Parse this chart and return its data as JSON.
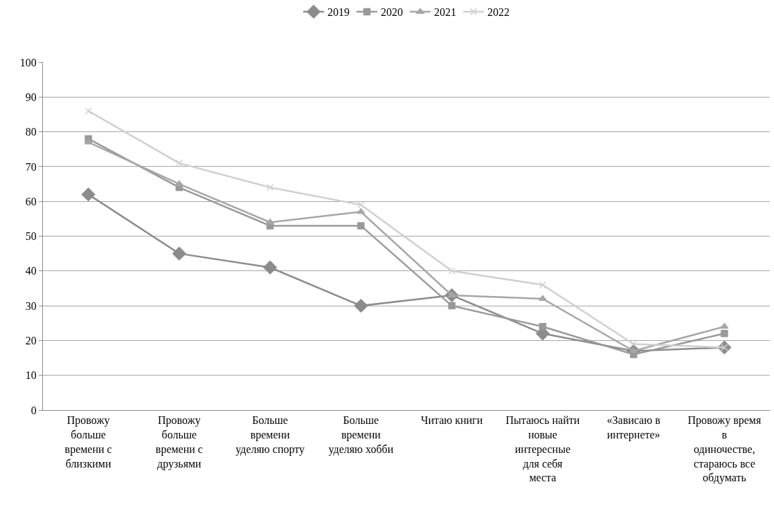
{
  "chart_data": {
    "type": "line",
    "categories": [
      "Провожу больше времени с близкими",
      "Провожу больше времени с друзьями",
      "Больше времени уделяю спорту",
      "Больше времени уделяю хобби",
      "Читаю книги",
      "Пытаюсь найти новые интересные для себя места",
      "«Зависаю в интернете»",
      "Провожу время в одиночестве, стараюсь все обдумать"
    ],
    "series": [
      {
        "name": "2019",
        "color": "#8c8c8c",
        "marker": "diamond",
        "values": [
          62,
          45,
          41,
          30,
          33,
          22,
          17,
          18
        ]
      },
      {
        "name": "2020",
        "color": "#999999",
        "marker": "square",
        "values": [
          78,
          64,
          53,
          53,
          30,
          24,
          16,
          22
        ]
      },
      {
        "name": "2021",
        "color": "#a6a6a6",
        "marker": "triangle",
        "values": [
          77,
          65,
          54,
          57,
          33,
          32,
          17,
          24
        ]
      },
      {
        "name": "2022",
        "color": "#d0d0d0",
        "marker": "cross",
        "values": [
          86,
          71,
          64,
          59,
          40,
          36,
          19,
          18
        ]
      }
    ],
    "ylim": [
      0,
      100
    ],
    "yticks": [
      0,
      10,
      20,
      30,
      40,
      50,
      60,
      70,
      80,
      90,
      100
    ],
    "grid": "y",
    "legend": "top",
    "line_style": "solid"
  }
}
